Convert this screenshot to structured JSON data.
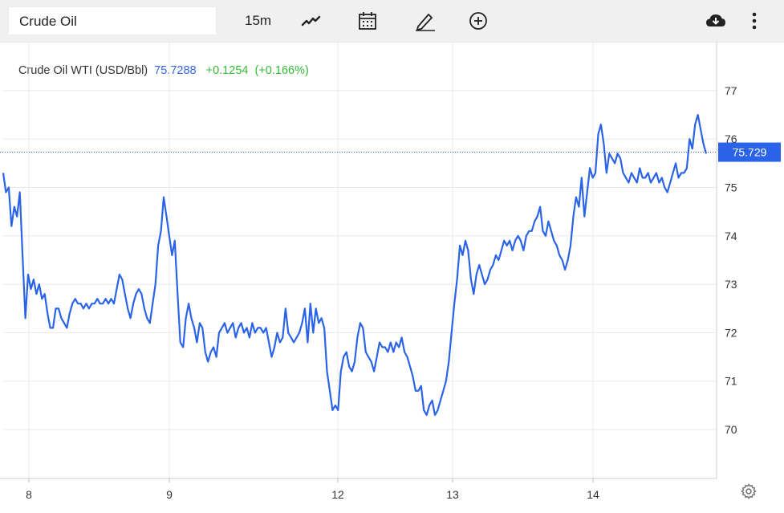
{
  "toolbar": {
    "symbol_value": "Crude Oil",
    "interval": "15m"
  },
  "legend": {
    "name": "Crude Oil WTI (USD/Bbl)",
    "price": "75.7288",
    "change": "+0.1254",
    "change_pct": "(+0.166%)"
  },
  "colors": {
    "line": "#2b63e8",
    "grid": "#e8e8e8",
    "price_tag_bg": "#2b63e8",
    "positive": "#33bb33"
  },
  "icons": [
    "line-chart-icon",
    "calendar-icon",
    "pencil-icon",
    "add-circle-icon",
    "cloud-download-icon",
    "more-vert-icon",
    "settings-icon"
  ],
  "chart_data": {
    "type": "line",
    "title": "Crude Oil WTI (USD/Bbl)",
    "x_labels": [
      "8",
      "9",
      "12",
      "13",
      "14"
    ],
    "y_ticks": [
      70,
      71,
      72,
      73,
      74,
      75,
      76,
      77
    ],
    "ylim": [
      69,
      77.8
    ],
    "last_value_label": "75.729",
    "last_value": 75.729,
    "grid": true,
    "series": [
      {
        "values": [
          75.3,
          74.9,
          75.0,
          74.2,
          74.6,
          74.4,
          74.9,
          73.6,
          72.3,
          73.2,
          72.9,
          73.1,
          72.8,
          73.0,
          72.7,
          72.8,
          72.4,
          72.1,
          72.1,
          72.5,
          72.5,
          72.3,
          72.2,
          72.1,
          72.4,
          72.6,
          72.7,
          72.6,
          72.6,
          72.5,
          72.6,
          72.5,
          72.6,
          72.6,
          72.7,
          72.6,
          72.6,
          72.7,
          72.6,
          72.7,
          72.6,
          72.9,
          73.2,
          73.1,
          72.8,
          72.5,
          72.3,
          72.6,
          72.8,
          72.9,
          72.8,
          72.5,
          72.3,
          72.2,
          72.6,
          73.0,
          73.8,
          74.1,
          74.8,
          74.4,
          74.0,
          73.6,
          73.9,
          72.8,
          71.8,
          71.7,
          72.3,
          72.6,
          72.3,
          72.1,
          71.8,
          72.2,
          72.1,
          71.6,
          71.4,
          71.6,
          71.7,
          71.5,
          72.0,
          72.1,
          72.2,
          72.0,
          72.1,
          72.2,
          71.9,
          72.1,
          72.2,
          72.0,
          72.1,
          71.9,
          72.2,
          72.0,
          72.1,
          72.1,
          72.0,
          72.1,
          71.8,
          71.5,
          71.7,
          72.0,
          71.8,
          71.9,
          72.5,
          72.0,
          71.9,
          71.8,
          71.9,
          72.0,
          72.2,
          72.5,
          71.8,
          72.6,
          72.0,
          72.5,
          72.2,
          72.3,
          72.1,
          71.2,
          70.8,
          70.4,
          70.5,
          70.4,
          71.2,
          71.5,
          71.6,
          71.3,
          71.2,
          71.4,
          71.9,
          72.2,
          72.1,
          71.6,
          71.5,
          71.4,
          71.2,
          71.5,
          71.8,
          71.7,
          71.7,
          71.6,
          71.8,
          71.6,
          71.8,
          71.7,
          71.9,
          71.6,
          71.5,
          71.3,
          71.1,
          70.8,
          70.8,
          70.9,
          70.4,
          70.3,
          70.5,
          70.6,
          70.3,
          70.4,
          70.6,
          70.8,
          71.0,
          71.4,
          72.0,
          72.6,
          73.1,
          73.8,
          73.6,
          73.9,
          73.7,
          73.1,
          72.8,
          73.2,
          73.4,
          73.2,
          73.0,
          73.1,
          73.3,
          73.4,
          73.6,
          73.5,
          73.7,
          73.9,
          73.8,
          73.9,
          73.7,
          73.9,
          74.0,
          73.9,
          73.7,
          74.0,
          74.1,
          74.1,
          74.3,
          74.4,
          74.6,
          74.1,
          74.0,
          74.3,
          74.1,
          73.9,
          73.8,
          73.6,
          73.5,
          73.3,
          73.5,
          73.8,
          74.4,
          74.8,
          74.6,
          75.2,
          74.4,
          74.9,
          75.4,
          75.2,
          75.3,
          76.1,
          76.3,
          75.9,
          75.3,
          75.7,
          75.6,
          75.5,
          75.7,
          75.6,
          75.3,
          75.2,
          75.1,
          75.3,
          75.2,
          75.1,
          75.4,
          75.2,
          75.2,
          75.3,
          75.1,
          75.2,
          75.3,
          75.1,
          75.2,
          75.0,
          74.9,
          75.1,
          75.3,
          75.5,
          75.2,
          75.3,
          75.3,
          75.4,
          76.0,
          75.8,
          76.3,
          76.5,
          76.2,
          75.9,
          75.7
        ]
      }
    ]
  }
}
